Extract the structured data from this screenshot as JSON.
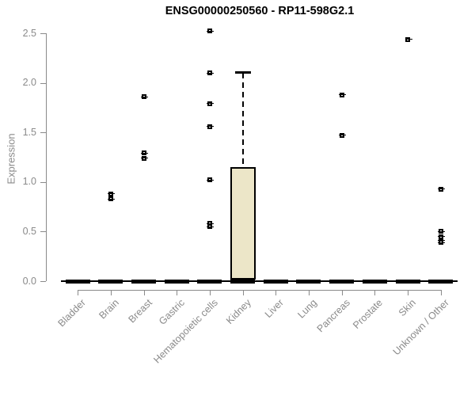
{
  "chart_data": {
    "type": "boxplot",
    "title": "ENSG00000250560 - RP11-598G2.1",
    "ylabel": "Expression",
    "xlabel": "",
    "ylim": [
      0,
      2.5
    ],
    "yticks": [
      "0.0",
      "0.5",
      "1.0",
      "1.5",
      "2.0",
      "2.5"
    ],
    "grid": false,
    "legend": "none",
    "categories": [
      "Bladder",
      "Brain",
      "Breast",
      "Gastric",
      "Hematopoietic cells",
      "Kidney",
      "Liver",
      "Lung",
      "Pancreas",
      "Prostate",
      "Skin",
      "Unknown / Other"
    ],
    "boxes": [
      {
        "category": "Bladder",
        "median": 0,
        "q1": 0,
        "q3": 0,
        "whisker_low": 0,
        "whisker_high": 0,
        "outliers": []
      },
      {
        "category": "Brain",
        "median": 0,
        "q1": 0,
        "q3": 0,
        "whisker_low": 0,
        "whisker_high": 0,
        "outliers": [
          0.88,
          0.83
        ]
      },
      {
        "category": "Breast",
        "median": 0,
        "q1": 0,
        "q3": 0,
        "whisker_low": 0,
        "whisker_high": 0,
        "outliers": [
          1.86,
          1.29,
          1.24
        ]
      },
      {
        "category": "Gastric",
        "median": 0,
        "q1": 0,
        "q3": 0,
        "whisker_low": 0,
        "whisker_high": 0,
        "outliers": []
      },
      {
        "category": "Hematopoietic cells",
        "median": 0,
        "q1": 0,
        "q3": 0,
        "whisker_low": 0,
        "whisker_high": 0,
        "outliers": [
          2.52,
          2.1,
          1.79,
          1.56,
          1.02,
          0.58,
          0.55
        ]
      },
      {
        "category": "Kidney",
        "median": 0,
        "q1": 0,
        "q3": 1.15,
        "whisker_low": 0,
        "whisker_high": 2.1,
        "outliers": []
      },
      {
        "category": "Liver",
        "median": 0,
        "q1": 0,
        "q3": 0,
        "whisker_low": 0,
        "whisker_high": 0,
        "outliers": []
      },
      {
        "category": "Lung",
        "median": 0,
        "q1": 0,
        "q3": 0,
        "whisker_low": 0,
        "whisker_high": 0,
        "outliers": []
      },
      {
        "category": "Pancreas",
        "median": 0,
        "q1": 0,
        "q3": 0,
        "whisker_low": 0,
        "whisker_high": 0,
        "outliers": [
          1.88,
          1.47
        ]
      },
      {
        "category": "Prostate",
        "median": 0,
        "q1": 0,
        "q3": 0,
        "whisker_low": 0,
        "whisker_high": 0,
        "outliers": []
      },
      {
        "category": "Skin",
        "median": 0,
        "q1": 0,
        "q3": 0,
        "whisker_low": 0,
        "whisker_high": 0,
        "outliers": [
          2.44
        ]
      },
      {
        "category": "Unknown / Other",
        "median": 0,
        "q1": 0,
        "q3": 0,
        "whisker_low": 0,
        "whisker_high": 0,
        "outliers": [
          0.93,
          0.5,
          0.45,
          0.41,
          0.39
        ]
      }
    ],
    "colors": {
      "box_fill": "#ece6c8",
      "box_border": "#000000",
      "axis": "#8a8a8a",
      "title_text": "#000000",
      "background": "#ffffff"
    }
  }
}
